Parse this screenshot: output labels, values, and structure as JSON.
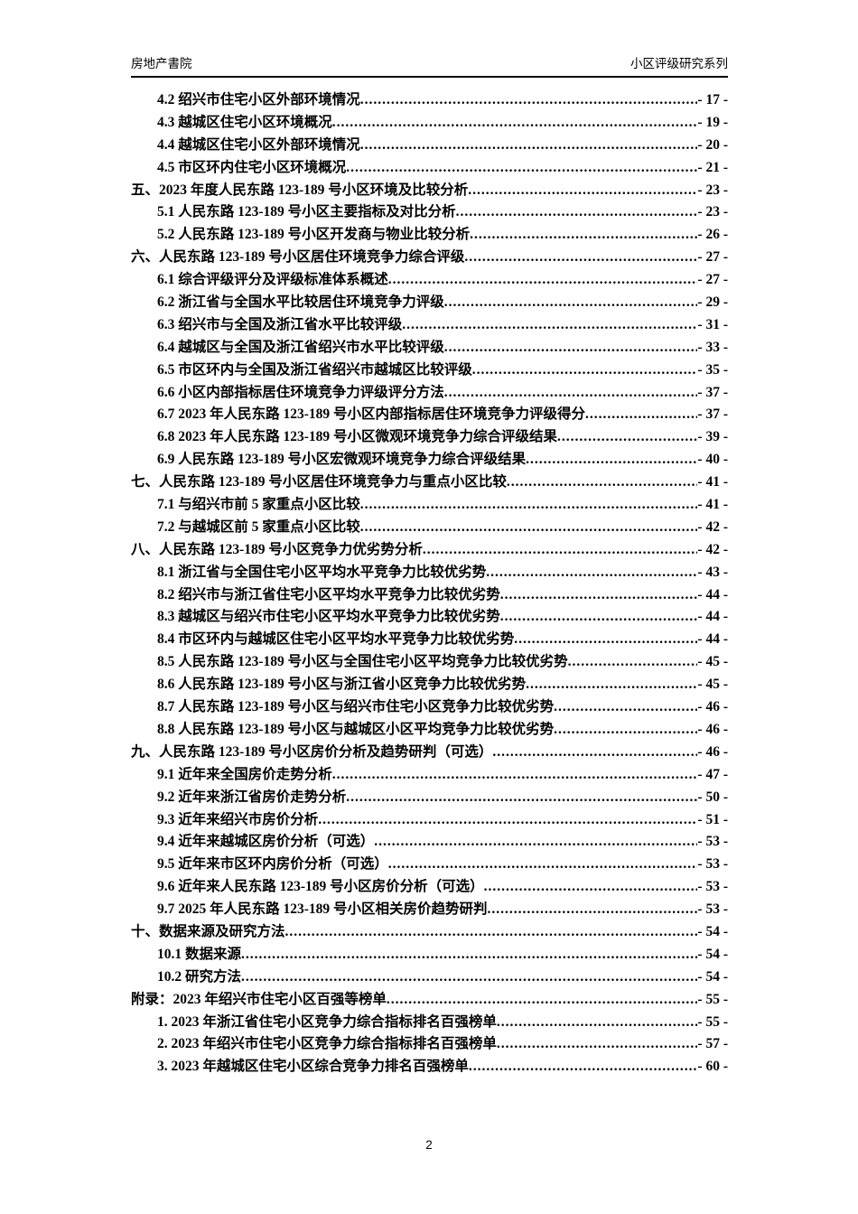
{
  "header": {
    "left": "房地产書院",
    "right": "小区评级研究系列"
  },
  "footer": {
    "page_number": "2"
  },
  "colors": {
    "text": "#000000",
    "rule": "#000000",
    "background": "#ffffff"
  },
  "toc": {
    "entries": [
      {
        "level": 2,
        "title": "4.2 绍兴市住宅小区外部环境情况",
        "page": "- 17 -"
      },
      {
        "level": 2,
        "title": "4.3 越城区住宅小区环境概况",
        "page": "- 19 -"
      },
      {
        "level": 2,
        "title": "4.4 越城区住宅小区外部环境情况",
        "page": "- 20 -"
      },
      {
        "level": 2,
        "title": "4.5 市区环内住宅小区环境概况",
        "page": "- 21 -"
      },
      {
        "level": 1,
        "title": "五、2023 年度人民东路 123-189 号小区环境及比较分析",
        "page": "- 23 -"
      },
      {
        "level": 2,
        "title": "5.1 人民东路 123-189 号小区主要指标及对比分析",
        "page": "- 23 -"
      },
      {
        "level": 2,
        "title": "5.2 人民东路 123-189 号小区开发商与物业比较分析",
        "page": "- 26 -"
      },
      {
        "level": 1,
        "title": "六、人民东路 123-189 号小区居住环境竞争力综合评级",
        "page": "- 27 -"
      },
      {
        "level": 2,
        "title": "6.1 综合评级评分及评级标准体系概述",
        "page": "- 27 -"
      },
      {
        "level": 2,
        "title": "6.2 浙江省与全国水平比较居住环境竞争力评级",
        "page": "- 29 -"
      },
      {
        "level": 2,
        "title": "6.3 绍兴市与全国及浙江省水平比较评级",
        "page": "- 31 -"
      },
      {
        "level": 2,
        "title": "6.4 越城区与全国及浙江省绍兴市水平比较评级",
        "page": "- 33 -"
      },
      {
        "level": 2,
        "title": "6.5 市区环内与全国及浙江省绍兴市越城区比较评级",
        "page": "- 35 -"
      },
      {
        "level": 2,
        "title": "6.6 小区内部指标居住环境竞争力评级评分方法",
        "page": "- 37 -"
      },
      {
        "level": 2,
        "title": "6.7 2023 年人民东路 123-189 号小区内部指标居住环境竞争力评级得分",
        "page": "- 37 -"
      },
      {
        "level": 2,
        "title": "6.8 2023 年人民东路 123-189 号小区微观环境竞争力综合评级结果",
        "page": "- 39 -"
      },
      {
        "level": 2,
        "title": "6.9 人民东路 123-189 号小区宏微观环境竞争力综合评级结果",
        "page": "- 40 -"
      },
      {
        "level": 1,
        "title": "七、人民东路 123-189 号小区居住环境竞争力与重点小区比较",
        "page": "- 41 -"
      },
      {
        "level": 2,
        "title": "7.1 与绍兴市前 5 家重点小区比较",
        "page": "- 41 -"
      },
      {
        "level": 2,
        "title": "7.2 与越城区前 5 家重点小区比较",
        "page": "- 42 -"
      },
      {
        "level": 1,
        "title": "八、人民东路 123-189 号小区竞争力优劣势分析",
        "page": "- 42 -"
      },
      {
        "level": 2,
        "title": "8.1 浙江省与全国住宅小区平均水平竞争力比较优劣势",
        "page": "- 43 -"
      },
      {
        "level": 2,
        "title": "8.2 绍兴市与浙江省住宅小区平均水平竞争力比较优劣势",
        "page": "- 44 -"
      },
      {
        "level": 2,
        "title": "8.3 越城区与绍兴市住宅小区平均水平竞争力比较优劣势",
        "page": "- 44 -"
      },
      {
        "level": 2,
        "title": "8.4 市区环内与越城区住宅小区平均水平竞争力比较优劣势",
        "page": "- 44 -"
      },
      {
        "level": 2,
        "title": "8.5 人民东路 123-189 号小区与全国住宅小区平均竞争力比较优劣势",
        "page": "- 45 -"
      },
      {
        "level": 2,
        "title": "8.6 人民东路 123-189 号小区与浙江省小区竞争力比较优劣势",
        "page": "- 45 -"
      },
      {
        "level": 2,
        "title": "8.7 人民东路 123-189 号小区与绍兴市住宅小区竞争力比较优劣势",
        "page": "- 46 -"
      },
      {
        "level": 2,
        "title": "8.8 人民东路 123-189 号小区与越城区小区平均竞争力比较优劣势",
        "page": "- 46 -"
      },
      {
        "level": 1,
        "title": "九、人民东路 123-189 号小区房价分析及趋势研判（可选）",
        "page": "- 46 -"
      },
      {
        "level": 2,
        "title": "9.1 近年来全国房价走势分析",
        "page": "- 47 -"
      },
      {
        "level": 2,
        "title": "9.2 近年来浙江省房价走势分析",
        "page": "- 50 -"
      },
      {
        "level": 2,
        "title": "9.3 近年来绍兴市房价分析",
        "page": "- 51 -"
      },
      {
        "level": 2,
        "title": "9.4 近年来越城区房价分析（可选）",
        "page": "- 53 -"
      },
      {
        "level": 2,
        "title": "9.5 近年来市区环内房价分析（可选）",
        "page": "- 53 -"
      },
      {
        "level": 2,
        "title": "9.6 近年来人民东路 123-189 号小区房价分析（可选）",
        "page": "- 53 -"
      },
      {
        "level": 2,
        "title": "9.7 2025 年人民东路 123-189 号小区相关房价趋势研判",
        "page": "- 53 -"
      },
      {
        "level": 1,
        "title": "十、数据来源及研究方法",
        "page": "- 54 -"
      },
      {
        "level": 2,
        "title": "10.1 数据来源",
        "page": "- 54 -"
      },
      {
        "level": 2,
        "title": "10.2 研究方法",
        "page": "- 54 -"
      },
      {
        "level": 1,
        "title": "附录：2023 年绍兴市住宅小区百强等榜单",
        "page": "- 55 -"
      },
      {
        "level": 2,
        "title": "1. 2023 年浙江省住宅小区竞争力综合指标排名百强榜单",
        "page": "- 55 -"
      },
      {
        "level": 2,
        "title": "2. 2023 年绍兴市住宅小区竞争力综合指标排名百强榜单",
        "page": "- 57 -"
      },
      {
        "level": 2,
        "title": "3. 2023 年越城区住宅小区综合竞争力排名百强榜单",
        "page": "- 60 -"
      }
    ]
  }
}
